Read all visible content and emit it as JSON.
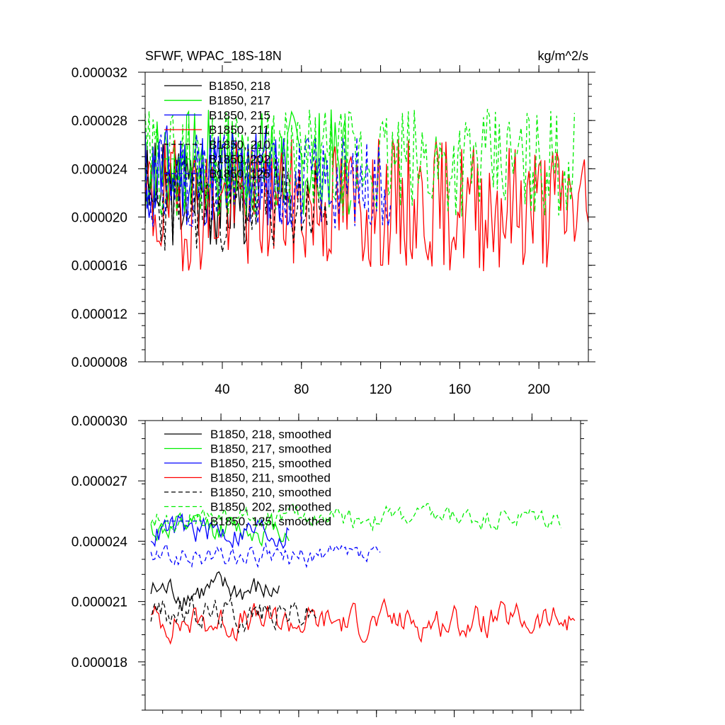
{
  "chart_data": [
    {
      "type": "line",
      "title": "SFWF, WPAC_18S-18N",
      "units": "kg/m^2/s",
      "xlabel": "",
      "ylabel": "",
      "xlim": [
        1,
        225
      ],
      "ylim": [
        8e-06,
        3.2e-05
      ],
      "xticks": [
        40,
        80,
        120,
        160,
        200
      ],
      "xtick_labels": [
        "40",
        "80",
        "120",
        "160",
        "200"
      ],
      "yticks": [
        8e-06,
        1.2e-05,
        1.6e-05,
        2e-05,
        2.4e-05,
        2.8e-05,
        3.2e-05
      ],
      "ytick_labels": [
        "0.000008",
        "0.000012",
        "0.000016",
        "0.000020",
        "0.000024",
        "0.000028",
        "0.000032"
      ],
      "legend_position": "top-left",
      "series": [
        {
          "name": "B1850, 218",
          "color": "#000000",
          "dash": "solid",
          "x_start": 1,
          "x_end": 54,
          "mean": 2.2e-05,
          "amp": 4.5e-06,
          "seed": 3
        },
        {
          "name": "B1850, 217",
          "color": "#00ee00",
          "dash": "solid",
          "x_start": 1,
          "x_end": 105,
          "mean": 2.45e-05,
          "amp": 4.5e-06,
          "seed": 7
        },
        {
          "name": "B1850, 215",
          "color": "#0000ff",
          "dash": "solid",
          "x_start": 1,
          "x_end": 75,
          "mean": 2.35e-05,
          "amp": 4.5e-06,
          "seed": 11
        },
        {
          "name": "B1850, 211",
          "color": "#ff0000",
          "dash": "solid",
          "x_start": 1,
          "x_end": 225,
          "mean": 2.1e-05,
          "amp": 5.5e-06,
          "seed": 19
        },
        {
          "name": "B1850, 210",
          "color": "#000000",
          "dash": "dashed",
          "x_start": 1,
          "x_end": 93,
          "mean": 2.1e-05,
          "amp": 4e-06,
          "seed": 23
        },
        {
          "name": "B1850, 202",
          "color": "#00ee00",
          "dash": "dashed",
          "x_start": 1,
          "x_end": 218,
          "mean": 2.45e-05,
          "amp": 4.5e-06,
          "seed": 29
        },
        {
          "name": "B1850, 125",
          "color": "#0000ff",
          "dash": "dashed",
          "x_start": 1,
          "x_end": 125,
          "mean": 2.3e-05,
          "amp": 4e-06,
          "seed": 31
        }
      ]
    },
    {
      "type": "line",
      "title": "",
      "xlabel": "",
      "ylabel": "",
      "xlim": [
        1,
        225
      ],
      "ylim": [
        1.56e-05,
        3e-05
      ],
      "xticks": [
        40,
        80,
        120,
        160,
        200
      ],
      "xtick_labels": [],
      "yticks": [
        1.8e-05,
        2.1e-05,
        2.4e-05,
        2.7e-05,
        3e-05
      ],
      "ytick_labels": [
        "0.000018",
        "0.000021",
        "0.000024",
        "0.000027",
        "0.000030"
      ],
      "legend_position": "top-left",
      "series": [
        {
          "name": "B1850, 218, smoothed",
          "color": "#000000",
          "dash": "solid",
          "x_start": 4,
          "x_end": 70,
          "mean": 2.15e-05,
          "amp": 1.5e-06,
          "seed": 3
        },
        {
          "name": "B1850, 217, smoothed",
          "color": "#00ee00",
          "dash": "solid",
          "x_start": 4,
          "x_end": 75,
          "mean": 2.46e-05,
          "amp": 1.3e-06,
          "seed": 7
        },
        {
          "name": "B1850, 215, smoothed",
          "color": "#0000ff",
          "dash": "solid",
          "x_start": 4,
          "x_end": 75,
          "mean": 2.45e-05,
          "amp": 1.5e-06,
          "seed": 11
        },
        {
          "name": "B1850, 211, smoothed",
          "color": "#ff0000",
          "dash": "solid",
          "x_start": 4,
          "x_end": 222,
          "mean": 2e-05,
          "amp": 1.6e-06,
          "seed": 19
        },
        {
          "name": "B1850, 210, smoothed",
          "color": "#000000",
          "dash": "dashed",
          "x_start": 4,
          "x_end": 90,
          "mean": 2.05e-05,
          "amp": 1.6e-06,
          "seed": 23
        },
        {
          "name": "B1850, 202, smoothed",
          "color": "#00ee00",
          "dash": "dashed",
          "x_start": 4,
          "x_end": 215,
          "mean": 2.52e-05,
          "amp": 1.1e-06,
          "seed": 29
        },
        {
          "name": "B1850, 125, smoothed",
          "color": "#0000ff",
          "dash": "dashed",
          "x_start": 4,
          "x_end": 122,
          "mean": 2.32e-05,
          "amp": 1.1e-06,
          "seed": 31
        }
      ]
    }
  ]
}
